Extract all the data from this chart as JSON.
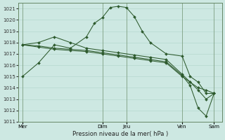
{
  "xlabel": "Pression niveau de la mer( hPa )",
  "background_color": "#cde8e2",
  "grid_color": "#b0d4ca",
  "line_color": "#2d5a2d",
  "vline_color": "#7a9a7a",
  "ylim": [
    1011,
    1021.5
  ],
  "yticks": [
    1011,
    1012,
    1013,
    1014,
    1015,
    1016,
    1017,
    1018,
    1019,
    1020,
    1021
  ],
  "xtick_positions": [
    0,
    10,
    13,
    20,
    24
  ],
  "xtick_labels": [
    "Mer",
    "Dim",
    "Jeu",
    "Ven",
    "Sam"
  ],
  "vline_positions": [
    0,
    10,
    13,
    20,
    24
  ],
  "xlim": [
    -0.5,
    25
  ],
  "series": [
    {
      "x": [
        0,
        2,
        4,
        6,
        8,
        9,
        10,
        11,
        12,
        13,
        14,
        15,
        16,
        18,
        20,
        21,
        22,
        23,
        24
      ],
      "y": [
        1015.0,
        1016.2,
        1017.8,
        1017.5,
        1018.5,
        1019.7,
        1020.2,
        1021.1,
        1021.2,
        1021.1,
        1020.3,
        1019.0,
        1018.0,
        1017.0,
        1016.8,
        1015.0,
        1014.5,
        1013.5,
        1013.5
      ]
    },
    {
      "x": [
        0,
        2,
        4,
        6,
        8,
        10,
        12,
        14,
        16,
        18,
        20,
        21,
        22,
        23,
        24
      ],
      "y": [
        1017.8,
        1018.0,
        1018.5,
        1018.0,
        1017.5,
        1017.3,
        1017.1,
        1016.9,
        1016.7,
        1016.5,
        1015.2,
        1014.5,
        1014.0,
        1013.8,
        1013.5
      ]
    },
    {
      "x": [
        0,
        2,
        4,
        6,
        8,
        10,
        12,
        14,
        16,
        18,
        20,
        21,
        22,
        23,
        24
      ],
      "y": [
        1017.8,
        1017.6,
        1017.4,
        1017.3,
        1017.2,
        1017.0,
        1016.8,
        1016.6,
        1016.4,
        1016.2,
        1015.0,
        1014.5,
        1013.8,
        1013.0,
        1013.5
      ]
    },
    {
      "x": [
        0,
        2,
        4,
        6,
        8,
        10,
        12,
        14,
        16,
        18,
        20,
        21,
        22,
        23,
        24
      ],
      "y": [
        1017.8,
        1017.7,
        1017.5,
        1017.4,
        1017.3,
        1017.1,
        1016.9,
        1016.7,
        1016.5,
        1016.3,
        1015.1,
        1014.2,
        1012.2,
        1011.5,
        1013.5
      ]
    }
  ],
  "figsize": [
    3.2,
    2.0
  ],
  "dpi": 100
}
